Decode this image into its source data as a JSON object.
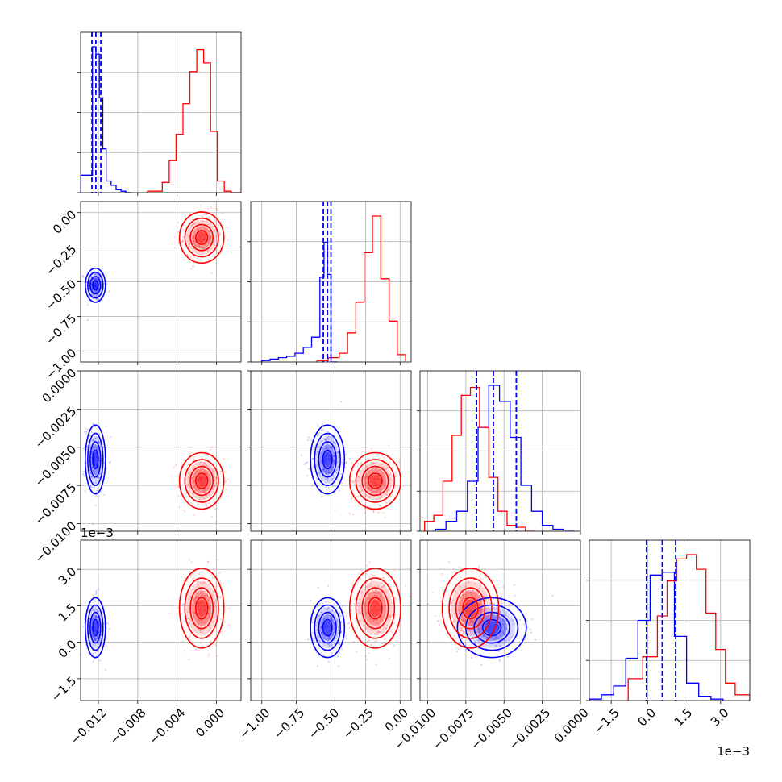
{
  "chart_data": {
    "type": "corner",
    "title": "",
    "grid": true,
    "series": [
      {
        "key": "blue",
        "color": "#0000ff"
      },
      {
        "key": "red",
        "color": "#ff0000"
      }
    ],
    "parameters": [
      {
        "range": [
          -0.0138,
          0.0025
        ],
        "ticks": [
          -0.012,
          -0.008,
          -0.004,
          0.0
        ],
        "tick_labels": [
          "−0.012",
          "−0.008",
          "−0.004",
          "0.000"
        ],
        "offset_label": "",
        "quantiles": {
          "blue": [
            -0.01265,
            -0.01225,
            -0.01175
          ]
        }
      },
      {
        "range": [
          -1.08,
          0.08
        ],
        "ticks": [
          -1.0,
          -0.75,
          -0.5,
          -0.25,
          0.0
        ],
        "tick_labels": [
          "−1.00",
          "−0.75",
          "−0.50",
          "−0.25",
          "0.00"
        ],
        "offset_label": "",
        "quantiles": {
          "blue": [
            -0.555,
            -0.525,
            -0.5
          ]
        }
      },
      {
        "range": [
          -0.0105,
          0.0
        ],
        "ticks": [
          -0.01,
          -0.0075,
          -0.005,
          -0.0025,
          0.0
        ],
        "tick_labels": [
          "−0.0100",
          "−0.0075",
          "−0.0050",
          "−0.0025",
          "0.0000"
        ],
        "offset_label": "",
        "quantiles": {
          "blue": [
            -0.0068,
            -0.0057,
            -0.0042
          ]
        }
      },
      {
        "range": [
          -0.0024,
          0.0042
        ],
        "ticks": [
          -0.0015,
          0.0,
          0.0015,
          0.003
        ],
        "tick_labels": [
          "−1.5",
          "0.0",
          "1.5",
          "3.0"
        ],
        "offset_label": "1e−3",
        "quantiles": {
          "blue": [
            -5e-05,
            0.0006,
            0.00115
          ]
        }
      }
    ],
    "histograms": [
      {
        "param": 0,
        "blue": {
          "edges": [
            -0.0138,
            -0.0126,
            -0.01225,
            -0.0119,
            -0.01155,
            -0.0112,
            -0.0107,
            -0.0102,
            -0.0097,
            -0.0092,
            -0.0087
          ],
          "counts": [
            0.12,
            1.0,
            0.95,
            0.65,
            0.3,
            0.08,
            0.05,
            0.02,
            0.01,
            0.0
          ]
        },
        "red": {
          "edges": [
            -0.007,
            -0.0055,
            -0.0048,
            -0.0041,
            -0.0034,
            -0.0027,
            -0.002,
            -0.0013,
            -0.0006,
            0.0001,
            0.0008,
            0.0015,
            0.0025
          ],
          "counts": [
            0.01,
            0.07,
            0.22,
            0.4,
            0.61,
            0.83,
            0.98,
            0.89,
            0.42,
            0.08,
            0.01,
            0.0
          ]
        }
      },
      {
        "param": 1,
        "blue": {
          "edges": [
            -1.0,
            -0.94,
            -0.88,
            -0.82,
            -0.76,
            -0.7,
            -0.64,
            -0.58,
            -0.55,
            -0.525,
            -0.5,
            -0.45
          ],
          "counts": [
            0.01,
            0.02,
            0.03,
            0.04,
            0.06,
            0.1,
            0.17,
            0.58,
            0.82,
            0.6,
            0.0
          ]
        },
        "red": {
          "edges": [
            -0.6,
            -0.52,
            -0.44,
            -0.38,
            -0.32,
            -0.26,
            -0.2,
            -0.14,
            -0.08,
            -0.02,
            0.04
          ],
          "counts": [
            0.01,
            0.03,
            0.06,
            0.2,
            0.41,
            0.75,
            1.0,
            0.57,
            0.28,
            0.05
          ]
        }
      },
      {
        "param": 2,
        "blue": {
          "edges": [
            -0.0095,
            -0.0088,
            -0.0081,
            -0.0074,
            -0.0067,
            -0.006,
            -0.0053,
            -0.0046,
            -0.0039,
            -0.0032,
            -0.0025,
            -0.0018,
            -0.0011,
            -0.0004
          ],
          "counts": [
            0.01,
            0.05,
            0.1,
            0.25,
            0.52,
            0.73,
            0.65,
            0.47,
            0.23,
            0.1,
            0.03,
            0.01,
            0.0
          ]
        },
        "red": {
          "edges": [
            -0.0102,
            -0.0096,
            -0.009,
            -0.0084,
            -0.0078,
            -0.0072,
            -0.0066,
            -0.006,
            -0.0054,
            -0.0048,
            -0.0042,
            -0.0036,
            -0.003
          ],
          "counts": [
            0.05,
            0.08,
            0.25,
            0.48,
            0.68,
            0.72,
            0.52,
            0.27,
            0.1,
            0.03,
            0.02,
            0.0
          ]
        }
      },
      {
        "param": 3,
        "blue": {
          "edges": [
            -0.0024,
            -0.0019,
            -0.0014,
            -0.0009,
            -0.0004,
            0.0001,
            0.0006,
            0.0011,
            0.0016,
            0.0021,
            0.0026,
            0.0031
          ],
          "counts": [
            0.01,
            0.04,
            0.1,
            0.29,
            0.55,
            0.86,
            0.88,
            0.44,
            0.12,
            0.03,
            0.01
          ]
        },
        "red": {
          "edges": [
            -0.0008,
            -0.0002,
            0.0004,
            0.0008,
            0.0012,
            0.0016,
            0.002,
            0.0024,
            0.0028,
            0.0032,
            0.0036,
            0.0042
          ],
          "counts": [
            0.15,
            0.3,
            0.58,
            0.82,
            0.97,
            1.0,
            0.9,
            0.6,
            0.35,
            0.12,
            0.04
          ]
        }
      }
    ],
    "populations": {
      "blue": {
        "mean": [
          -0.0123,
          -0.525,
          -0.0058,
          0.0006
        ],
        "sd": [
          0.0005,
          0.06,
          0.0011,
          0.0006
        ]
      },
      "red": {
        "mean": [
          -0.0015,
          -0.18,
          -0.0072,
          0.0014
        ],
        "sd": [
          0.0011,
          0.09,
          0.0009,
          0.0008
        ]
      }
    }
  }
}
